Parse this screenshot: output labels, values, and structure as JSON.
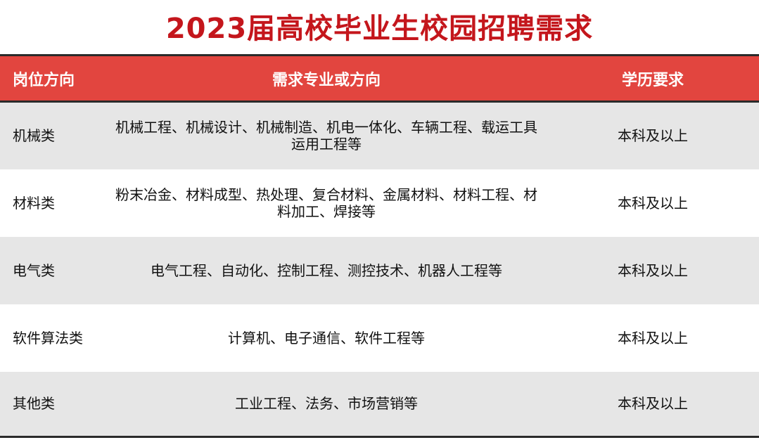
{
  "title": "2023届高校毕业生校园招聘需求",
  "table": {
    "headers": [
      "岗位方向",
      "需求专业或方向",
      "学历要求"
    ],
    "rows": [
      {
        "position": "机械类",
        "majors": "机械工程、机械设计、机械制造、机电一体化、车辆工程、载运工具运用工程等",
        "education": "本科及以上"
      },
      {
        "position": "材料类",
        "majors": "粉末冶金、材料成型、热处理、复合材料、金属材料、材料工程、材料加工、焊接等",
        "education": "本科及以上"
      },
      {
        "position": "电气类",
        "majors": "电气工程、自动化、控制工程、测控技术、机器人工程等",
        "education": "本科及以上"
      },
      {
        "position": "软件算法类",
        "majors": "计算机、电子通信、软件工程等",
        "education": "本科及以上"
      },
      {
        "position": "其他类",
        "majors": "工业工程、法务、市场营销等",
        "education": "本科及以上"
      }
    ]
  },
  "colors": {
    "title": "#c4161c",
    "header_bg": "#e2453f",
    "stripe": "#e6e6e6"
  }
}
